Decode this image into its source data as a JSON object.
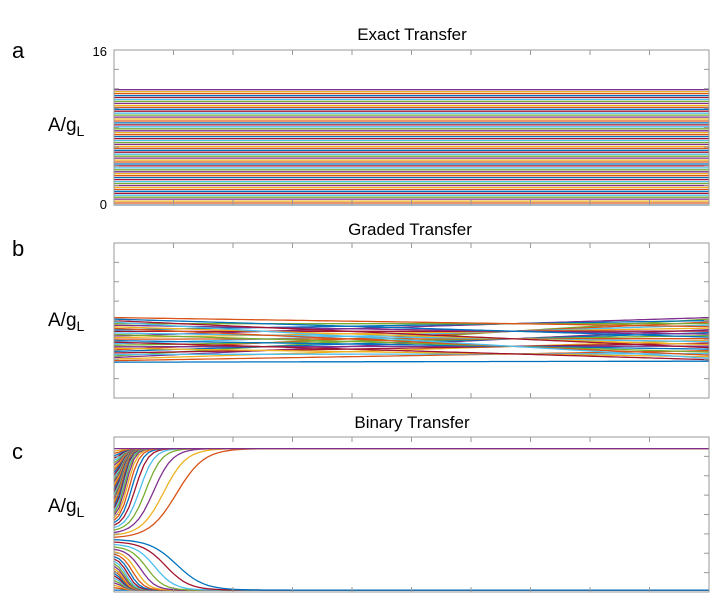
{
  "chart_data": [
    {
      "type": "line",
      "panel_label": "a",
      "title": "Exact Transfer",
      "ylabel_main": "A/g",
      "ylabel_sub": "L",
      "ytick_labels": [
        "0",
        "16"
      ],
      "ylim": [
        0,
        16
      ],
      "xlim": [
        0,
        1
      ],
      "n_series": 60,
      "levels_range": [
        0,
        11.9
      ],
      "description_behavior": "constant"
    },
    {
      "type": "line",
      "panel_label": "b",
      "title": "Graded Transfer",
      "ylabel_main": "A/g",
      "ylabel_sub": "L",
      "ytick_labels": [],
      "ylim": [
        0,
        16
      ],
      "xlim": [
        0,
        1
      ],
      "n_series": 30,
      "start_range": [
        3.7,
        8.3
      ],
      "end_range": [
        3.8,
        8.3
      ],
      "description_behavior": "slowly diverging"
    },
    {
      "type": "line",
      "panel_label": "c",
      "title": "Binary Transfer",
      "ylabel_main": "A/g",
      "ylabel_sub": "L",
      "ytick_labels": [],
      "ylim": [
        0,
        16
      ],
      "xlim": [
        0,
        1
      ],
      "n_series": 60,
      "start_range": [
        0.2,
        14.8
      ],
      "threshold": 5.5,
      "high_state": 14.8,
      "low_state": 0.2,
      "description_behavior": "bistable"
    }
  ],
  "colors": [
    "#0072bd",
    "#d95319",
    "#edb120",
    "#7e2f8e",
    "#77ac30",
    "#4dbeee",
    "#a2142f"
  ]
}
